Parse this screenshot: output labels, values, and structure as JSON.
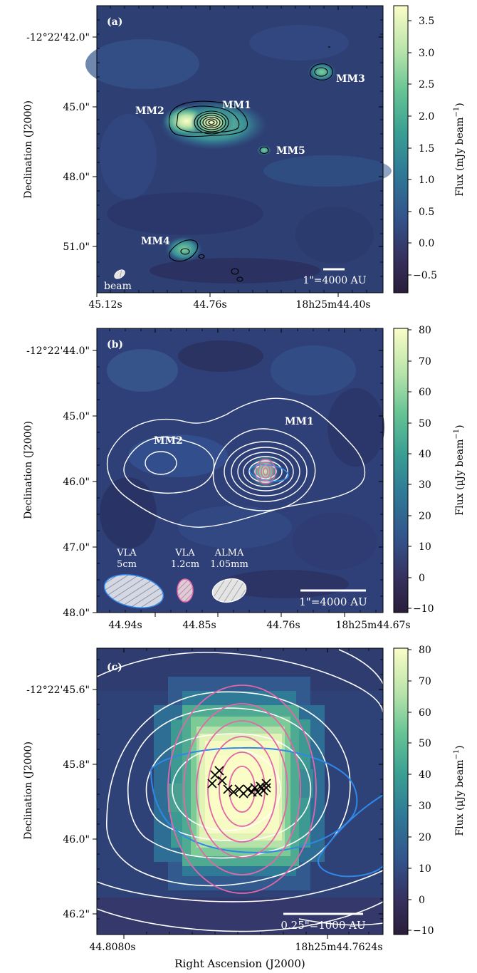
{
  "panels": [
    {
      "tag": "(a)",
      "ylabel": "Declination (J2000)",
      "yticks": [
        "-12°22'42.0\"",
        "45.0\"",
        "48.0\"",
        "51.0\""
      ],
      "xticks": [
        "45.12s",
        "44.76s",
        "18h25m44.40s"
      ],
      "cbar_label": "Flux (mJy beam",
      "cbar_ticks": [
        "3.5",
        "3.0",
        "2.5",
        "2.0",
        "1.5",
        "1.0",
        "0.5",
        "0.0",
        "−0.5"
      ],
      "sources": [
        "MM1",
        "MM2",
        "MM3",
        "MM4",
        "MM5"
      ],
      "beam_label": "beam",
      "scalebar": "1\"=4000 AU"
    },
    {
      "tag": "(b)",
      "ylabel": "Declination (J2000)",
      "yticks": [
        "-12°22'44.0\"",
        "45.0\"",
        "46.0\"",
        "47.0\"",
        "48.0\""
      ],
      "xticks": [
        "44.94s",
        "44.85s",
        "44.76s",
        "18h25m44.67s"
      ],
      "cbar_label": "Flux (μJy beam",
      "cbar_ticks": [
        "80",
        "70",
        "60",
        "50",
        "40",
        "30",
        "20",
        "10",
        "0",
        "−10"
      ],
      "sources": [
        "MM1",
        "MM2"
      ],
      "beams": [
        {
          "line1": "VLA",
          "line2": "5cm"
        },
        {
          "line1": "VLA",
          "line2": "1.2cm"
        },
        {
          "line1": "ALMA",
          "line2": "1.05mm"
        }
      ],
      "scalebar": "1\"=4000 AU"
    },
    {
      "tag": "(c)",
      "ylabel": "Declination (J2000)",
      "yticks": [
        "-12°22'45.6\"",
        "45.8\"",
        "46.0\"",
        "46.2\""
      ],
      "xticks": [
        "44.8080s",
        "18h25m44.7624s"
      ],
      "cbar_label": "Flux (μJy beam",
      "cbar_ticks": [
        "80",
        "70",
        "60",
        "50",
        "40",
        "30",
        "20",
        "10",
        "0",
        "−10"
      ],
      "scalebar": "0.25\"=1000 AU"
    }
  ],
  "xlabel": "Right Ascension (J2000)",
  "cbar_superscript": "−1",
  "cbar_close": ")",
  "colors": {
    "cmap_low": "#2a1d3a",
    "cmap_mid": "#2f8a8f",
    "cmap_high": "#fbfdc6",
    "contour_white": "#ffffff",
    "contour_pink": "#e466a8",
    "contour_blue": "#2f88e8"
  },
  "chart_data": [
    {
      "type": "heatmap",
      "title": "",
      "xlabel": "Right Ascension (J2000)",
      "ylabel": "Declination (J2000)",
      "colorbar_label": "Flux (mJy beam−1)",
      "colorbar_range": [
        -0.8,
        3.7
      ],
      "colorbar_ticks": [
        -0.5,
        0.0,
        0.5,
        1.0,
        1.5,
        2.0,
        2.5,
        3.0,
        3.5
      ],
      "sources": [
        "MM1",
        "MM2",
        "MM3",
        "MM4",
        "MM5"
      ]
    },
    {
      "type": "heatmap",
      "title": "",
      "xlabel": "Right Ascension (J2000)",
      "ylabel": "Declination (J2000)",
      "colorbar_label": "Flux (μJy beam−1)",
      "colorbar_range": [
        -12,
        80
      ],
      "colorbar_ticks": [
        -10,
        0,
        10,
        20,
        30,
        40,
        50,
        60,
        70,
        80
      ],
      "sources": [
        "MM1",
        "MM2"
      ],
      "beams": [
        "VLA 5cm",
        "VLA 1.2cm",
        "ALMA 1.05mm"
      ]
    },
    {
      "type": "heatmap",
      "title": "",
      "xlabel": "Right Ascension (J2000)",
      "ylabel": "Declination (J2000)",
      "colorbar_label": "Flux (μJy beam−1)",
      "colorbar_range": [
        -12,
        80
      ],
      "colorbar_ticks": [
        -10,
        0,
        10,
        20,
        30,
        40,
        50,
        60,
        70,
        80
      ]
    }
  ]
}
